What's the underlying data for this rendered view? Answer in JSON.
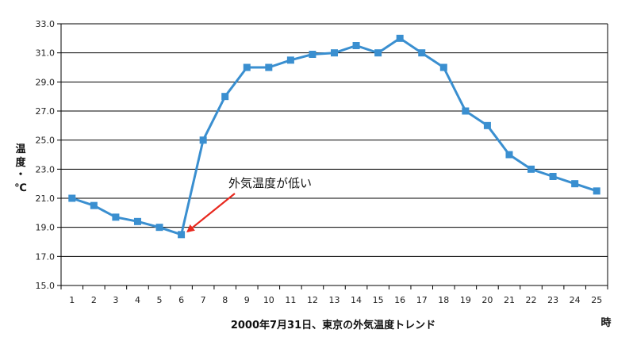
{
  "chart_data": {
    "type": "line",
    "xlabel": "時",
    "ylabel": "温度・℃",
    "caption": "2000年7月31日、東京の外気温度トレンド",
    "ylim": [
      15.0,
      33.0
    ],
    "ytick_step": 2.0,
    "x": [
      1,
      2,
      3,
      4,
      5,
      6,
      7,
      8,
      9,
      10,
      11,
      12,
      13,
      14,
      15,
      16,
      17,
      18,
      19,
      20,
      21,
      22,
      23,
      24,
      25
    ],
    "series": [
      {
        "values": [
          21.0,
          20.5,
          19.7,
          19.4,
          19.0,
          18.5,
          25.0,
          28.0,
          30.0,
          30.0,
          30.5,
          30.9,
          31.0,
          31.5,
          31.0,
          32.0,
          31.0,
          30.0,
          27.0,
          26.0,
          24.0,
          23.0,
          22.5,
          22.0,
          21.5
        ]
      }
    ],
    "grid": true,
    "colors": {
      "line": "#3a8fd0",
      "marker": "#3a8fd0",
      "arrow": "#e8281e",
      "grid": "#000000"
    },
    "annotation": {
      "text": "外気温度が低い",
      "target_x": 6,
      "target_y": 18.5
    }
  }
}
